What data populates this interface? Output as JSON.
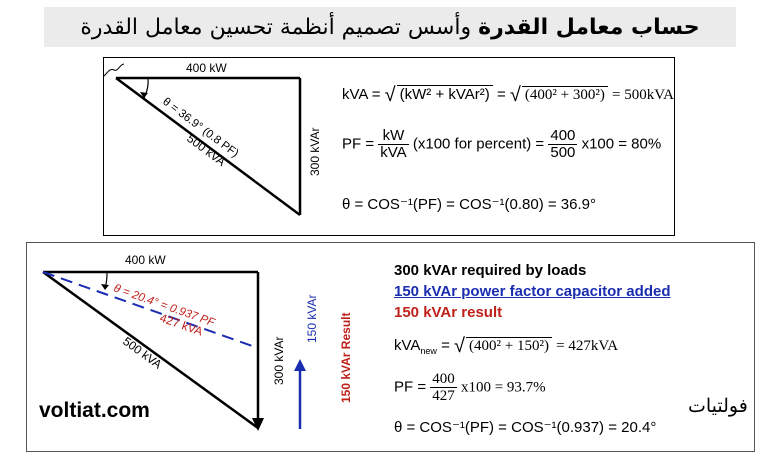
{
  "title": {
    "bold_part": "حساب معامل القدرة",
    "rest": "وأسس تصميم أنظمة تحسين معامل القدرة"
  },
  "top_panel": {
    "kw_label": "400 kW",
    "kvar_label": "300 kVAr",
    "kva_label": "500 kVA",
    "angle_label": "θ = 36.9° (0.8 PF)",
    "formula_kva": {
      "lhs": "kVA =",
      "inner1": "(kW² + kVAr²)",
      "eq": "=",
      "inner2": "(400² + 300²)",
      "result": "= 500kVA"
    },
    "formula_pf": {
      "lhs": "PF =",
      "num": "kW",
      "den": "kVA",
      "mid": "(x100 for percent) =",
      "num2": "400",
      "den2": "500",
      "result": "x100 = 80%"
    },
    "formula_theta": "θ = COS⁻¹(PF) = COS⁻¹(0.80) = 36.9°"
  },
  "bottom_panel": {
    "kw_label": "400 kW",
    "kvar_label": "300 kVAr",
    "kva_500_label": "500 kVA",
    "kva_427_label": "427 kVA",
    "angle_label": "θ = 20.4° = 0.937 PF",
    "arrow_150_label": "150 kVAr",
    "result_150_label": "150 kVAr Result",
    "line_required": "300 kVAr required by loads",
    "line_added": "150 kVAr power factor capacitor added",
    "line_result": "150 kVAr result",
    "formula_kva": {
      "lhs_main": "kVA",
      "lhs_sub": "new",
      "eq": "=",
      "inner": "(400² + 150²)",
      "result": "= 427kVA"
    },
    "formula_pf": {
      "lhs": "PF =",
      "num": "400",
      "den": "427",
      "result": "x100 = 93.7%"
    },
    "formula_theta": "θ = COS⁻¹(PF) = COS⁻¹(0.937) = 20.4°",
    "brand": "voltiat.com",
    "arabic_mark": "فولتيات"
  },
  "colors": {
    "blue": "#1a2db0",
    "red": "#c0201a",
    "title_bg": "#ebebeb"
  }
}
